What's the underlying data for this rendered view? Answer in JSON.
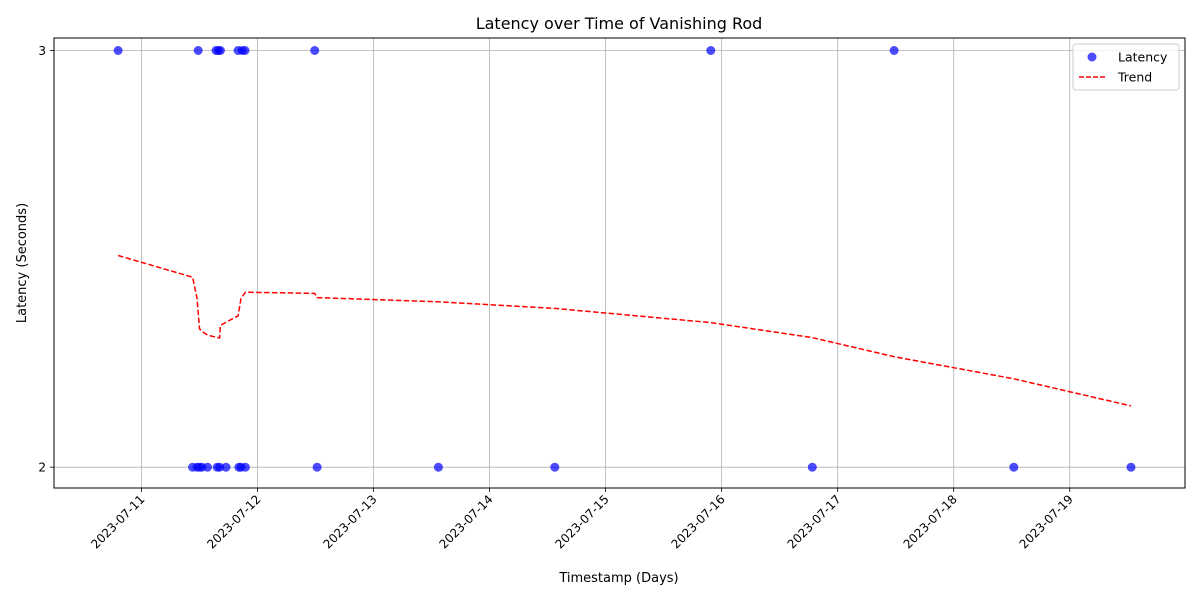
{
  "chart_data": {
    "type": "scatter",
    "title": "Latency over Time of Vanishing Rod",
    "xlabel": "Timestamp (Days)",
    "ylabel": "Latency (Seconds)",
    "x_ticks": [
      "2023-07-11",
      "2023-07-12",
      "2023-07-13",
      "2023-07-14",
      "2023-07-15",
      "2023-07-16",
      "2023-07-17",
      "2023-07-18",
      "2023-07-19"
    ],
    "y_ticks": [
      "2",
      "3"
    ],
    "xlim": [
      "2023-07-10T05:55",
      "2023-07-19T23:50"
    ],
    "ylim": [
      1.95,
      3.03
    ],
    "grid": true,
    "legend_position": "top-right",
    "legend": [
      {
        "label": "Latency",
        "marker": "circle",
        "color": "#0000ff"
      },
      {
        "label": "Trend",
        "marker": "dashed-line",
        "color": "#ff0000"
      }
    ],
    "series": [
      {
        "name": "Latency",
        "kind": "scatter",
        "color": "#0000ff",
        "points": [
          {
            "x": "2023-07-10T19:10",
            "y": 3
          },
          {
            "x": "2023-07-11T10:35",
            "y": 2
          },
          {
            "x": "2023-07-11T11:30",
            "y": 2
          },
          {
            "x": "2023-07-11T11:45",
            "y": 3
          },
          {
            "x": "2023-07-11T12:00",
            "y": 2
          },
          {
            "x": "2023-07-11T12:30",
            "y": 2
          },
          {
            "x": "2023-07-11T13:40",
            "y": 2
          },
          {
            "x": "2023-07-11T15:25",
            "y": 3
          },
          {
            "x": "2023-07-11T15:40",
            "y": 2
          },
          {
            "x": "2023-07-11T15:55",
            "y": 3
          },
          {
            "x": "2023-07-11T16:10",
            "y": 2
          },
          {
            "x": "2023-07-11T16:20",
            "y": 3
          },
          {
            "x": "2023-07-11T17:30",
            "y": 2
          },
          {
            "x": "2023-07-11T20:00",
            "y": 3
          },
          {
            "x": "2023-07-11T20:10",
            "y": 2
          },
          {
            "x": "2023-07-11T20:35",
            "y": 2
          },
          {
            "x": "2023-07-11T20:50",
            "y": 3
          },
          {
            "x": "2023-07-11T21:25",
            "y": 3
          },
          {
            "x": "2023-07-11T21:30",
            "y": 2
          },
          {
            "x": "2023-07-12T11:50",
            "y": 3
          },
          {
            "x": "2023-07-12T12:20",
            "y": 2
          },
          {
            "x": "2023-07-13T13:25",
            "y": 2
          },
          {
            "x": "2023-07-14T13:30",
            "y": 2
          },
          {
            "x": "2023-07-15T21:45",
            "y": 3
          },
          {
            "x": "2023-07-16T18:45",
            "y": 2
          },
          {
            "x": "2023-07-17T11:40",
            "y": 3
          },
          {
            "x": "2023-07-18T12:25",
            "y": 2
          },
          {
            "x": "2023-07-19T12:40",
            "y": 2
          }
        ]
      },
      {
        "name": "Trend",
        "kind": "line",
        "style": "dashed",
        "color": "#ff0000",
        "points": [
          {
            "x": "2023-07-10T19:10",
            "y": 2.508
          },
          {
            "x": "2023-07-11T10:35",
            "y": 2.456
          },
          {
            "x": "2023-07-11T11:30",
            "y": 2.406
          },
          {
            "x": "2023-07-11T12:00",
            "y": 2.332
          },
          {
            "x": "2023-07-11T12:30",
            "y": 2.326
          },
          {
            "x": "2023-07-11T13:40",
            "y": 2.317
          },
          {
            "x": "2023-07-11T15:25",
            "y": 2.312
          },
          {
            "x": "2023-07-11T16:10",
            "y": 2.31
          },
          {
            "x": "2023-07-11T16:20",
            "y": 2.34
          },
          {
            "x": "2023-07-11T17:30",
            "y": 2.348
          },
          {
            "x": "2023-07-11T20:00",
            "y": 2.363
          },
          {
            "x": "2023-07-11T20:35",
            "y": 2.405
          },
          {
            "x": "2023-07-11T21:30",
            "y": 2.42
          },
          {
            "x": "2023-07-12T11:50",
            "y": 2.417
          },
          {
            "x": "2023-07-12T12:20",
            "y": 2.407
          },
          {
            "x": "2023-07-13T13:25",
            "y": 2.397
          },
          {
            "x": "2023-07-14T13:30",
            "y": 2.381
          },
          {
            "x": "2023-07-15T21:45",
            "y": 2.347
          },
          {
            "x": "2023-07-16T18:45",
            "y": 2.311
          },
          {
            "x": "2023-07-17T11:40",
            "y": 2.265
          },
          {
            "x": "2023-07-18T12:25",
            "y": 2.212
          },
          {
            "x": "2023-07-19T12:40",
            "y": 2.147
          }
        ]
      }
    ]
  }
}
